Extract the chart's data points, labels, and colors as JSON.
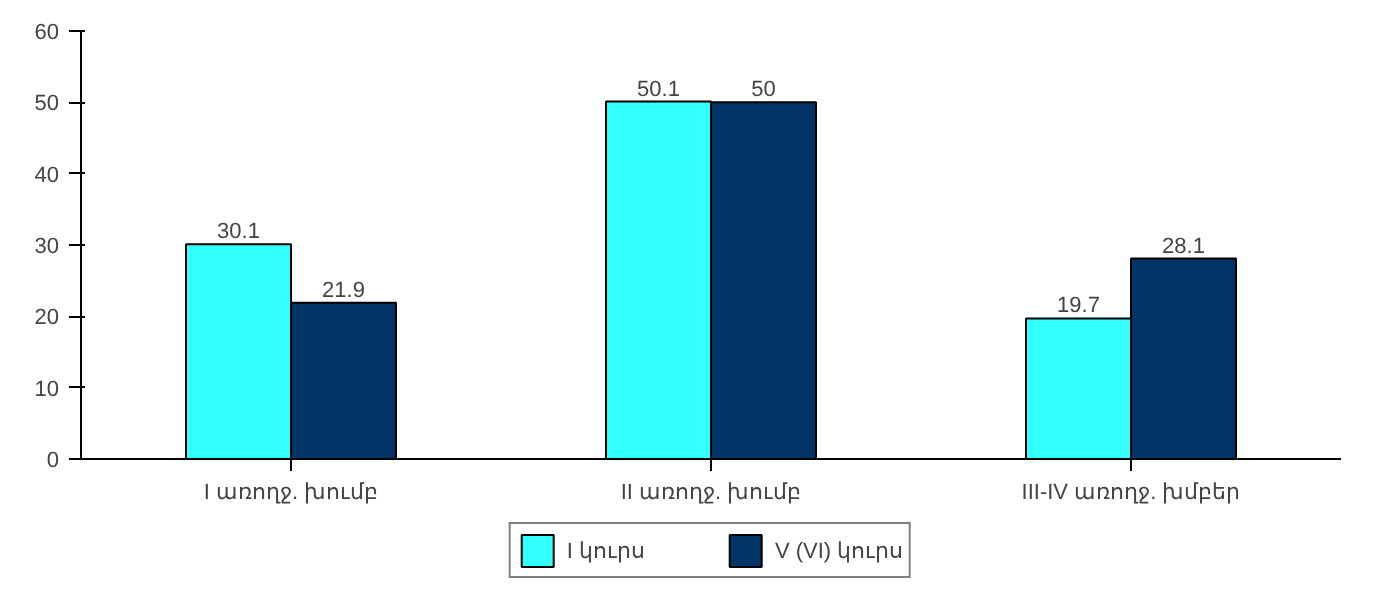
{
  "chart_data": {
    "type": "bar",
    "categories": [
      "I առողջ. խումբ",
      "II առողջ. խումբ",
      "III-IV առողջ. խմբեր"
    ],
    "series": [
      {
        "name": "I կուրս",
        "color": "#33ffff",
        "values": [
          30.1,
          50.1,
          19.7
        ]
      },
      {
        "name": "V (VI) կուրս",
        "color": "#003366",
        "values": [
          21.9,
          50,
          28.1
        ]
      }
    ],
    "ylim": [
      0,
      60
    ],
    "yticks": [
      0,
      10,
      20,
      30,
      40,
      50,
      60
    ],
    "data_labels": true,
    "grid": false,
    "legend": "bottom"
  }
}
